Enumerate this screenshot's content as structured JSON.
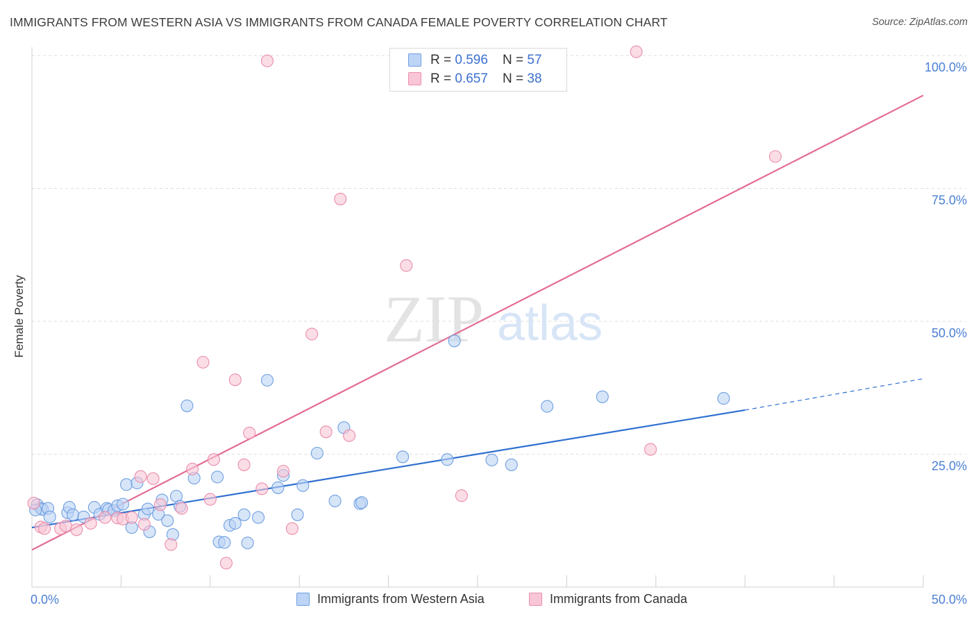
{
  "header": {
    "title": "IMMIGRANTS FROM WESTERN ASIA VS IMMIGRANTS FROM CANADA FEMALE POVERTY CORRELATION CHART",
    "source": "Source: ZipAtlas.com"
  },
  "watermark": {
    "zip": "ZIP",
    "atlas": "atlas"
  },
  "legend": {
    "r_label": "R = ",
    "n_label": "N = ",
    "rows": [
      {
        "r": "0.596",
        "n": "57"
      },
      {
        "r": "0.657",
        "n": "38"
      }
    ]
  },
  "colors": {
    "blue_fill": "#bcd4f5",
    "blue_stroke": "#6f9fe0",
    "blue_line": "#2f6fd0",
    "pink_fill": "#f8c6d6",
    "pink_stroke": "#ea8dab",
    "pink_line": "#e36b94",
    "axis_label": "#4a7fd4",
    "grid": "#dddddd"
  },
  "chart_data": {
    "type": "scatter",
    "title": "IMMIGRANTS FROM WESTERN ASIA VS IMMIGRANTS FROM CANADA FEMALE POVERTY CORRELATION CHART",
    "xlabel": "",
    "ylabel": "Female Poverty",
    "xlim": [
      0,
      50
    ],
    "ylim": [
      0,
      100
    ],
    "x_tick_labels": [
      "0.0%",
      "50.0%"
    ],
    "y_ticks": [
      25,
      50,
      75,
      100
    ],
    "y_tick_labels": [
      "25.0%",
      "50.0%",
      "75.0%",
      "100.0%"
    ],
    "grid": true,
    "series": [
      {
        "name": "Immigrants from Western Asia",
        "color": "blue",
        "r": 0.596,
        "n": 57,
        "trend": {
          "x0": 0,
          "y0": 11.2,
          "x1": 40,
          "y1": 33.3,
          "dash_to_x": 50,
          "dash_to_y": 39.2
        },
        "points": [
          [
            0.3,
            15.5
          ],
          [
            0.5,
            14.8
          ],
          [
            0.6,
            14.6
          ],
          [
            0.9,
            14.8
          ],
          [
            1.0,
            13.2
          ],
          [
            2.0,
            14.0
          ],
          [
            2.1,
            15.0
          ],
          [
            2.3,
            13.6
          ],
          [
            2.9,
            13.2
          ],
          [
            3.5,
            15.0
          ],
          [
            3.8,
            13.7
          ],
          [
            4.2,
            14.8
          ],
          [
            4.3,
            14.6
          ],
          [
            4.6,
            14.4
          ],
          [
            4.8,
            15.3
          ],
          [
            5.1,
            15.6
          ],
          [
            5.3,
            19.3
          ],
          [
            5.6,
            11.2
          ],
          [
            5.9,
            19.6
          ],
          [
            6.3,
            13.7
          ],
          [
            6.5,
            14.7
          ],
          [
            6.6,
            10.4
          ],
          [
            7.1,
            13.7
          ],
          [
            7.3,
            16.4
          ],
          [
            7.6,
            12.5
          ],
          [
            7.9,
            9.9
          ],
          [
            8.1,
            17.1
          ],
          [
            8.3,
            15.2
          ],
          [
            8.7,
            34.1
          ],
          [
            9.1,
            20.5
          ],
          [
            10.4,
            20.7
          ],
          [
            10.5,
            8.5
          ],
          [
            10.8,
            8.4
          ],
          [
            11.1,
            11.6
          ],
          [
            11.4,
            12.0
          ],
          [
            11.9,
            13.6
          ],
          [
            12.1,
            8.3
          ],
          [
            12.7,
            13.1
          ],
          [
            13.2,
            38.9
          ],
          [
            13.8,
            18.7
          ],
          [
            14.1,
            21.0
          ],
          [
            14.9,
            13.6
          ],
          [
            15.2,
            19.1
          ],
          [
            16.0,
            25.2
          ],
          [
            17.0,
            16.2
          ],
          [
            17.5,
            30.0
          ],
          [
            18.4,
            15.7
          ],
          [
            18.5,
            15.9
          ],
          [
            20.8,
            24.5
          ],
          [
            23.3,
            24.0
          ],
          [
            23.7,
            46.3
          ],
          [
            25.8,
            23.9
          ],
          [
            26.9,
            23.0
          ],
          [
            28.9,
            34.0
          ],
          [
            32.0,
            35.8
          ],
          [
            38.8,
            35.5
          ],
          [
            0.2,
            14.5
          ]
        ]
      },
      {
        "name": "Immigrants from Canada",
        "color": "pink",
        "r": 0.657,
        "n": 38,
        "trend": {
          "x0": 0,
          "y0": 7.0,
          "x1": 50,
          "y1": 92.5
        },
        "points": [
          [
            0.1,
            15.8
          ],
          [
            0.5,
            11.3
          ],
          [
            0.7,
            11.0
          ],
          [
            1.6,
            11.0
          ],
          [
            1.9,
            11.5
          ],
          [
            2.5,
            10.8
          ],
          [
            3.3,
            12.0
          ],
          [
            4.1,
            13.1
          ],
          [
            4.8,
            13.0
          ],
          [
            5.1,
            12.8
          ],
          [
            5.6,
            13.1
          ],
          [
            6.1,
            20.8
          ],
          [
            6.3,
            11.8
          ],
          [
            6.8,
            20.4
          ],
          [
            7.2,
            15.5
          ],
          [
            7.8,
            8.0
          ],
          [
            8.4,
            14.8
          ],
          [
            9.0,
            22.2
          ],
          [
            9.6,
            42.3
          ],
          [
            10.0,
            16.5
          ],
          [
            10.2,
            24.0
          ],
          [
            10.9,
            4.5
          ],
          [
            11.4,
            39.0
          ],
          [
            11.9,
            23.0
          ],
          [
            12.2,
            29.0
          ],
          [
            12.9,
            18.5
          ],
          [
            13.2,
            99.0
          ],
          [
            14.1,
            21.8
          ],
          [
            14.6,
            11.0
          ],
          [
            15.7,
            47.6
          ],
          [
            16.5,
            29.2
          ],
          [
            17.3,
            73.0
          ],
          [
            17.8,
            28.5
          ],
          [
            21.0,
            60.5
          ],
          [
            24.1,
            17.2
          ],
          [
            34.7,
            25.9
          ],
          [
            33.9,
            100.7
          ],
          [
            41.7,
            81.0
          ]
        ]
      }
    ]
  },
  "bottom_legend": {
    "items": [
      "Immigrants from Western Asia",
      "Immigrants from Canada"
    ]
  }
}
